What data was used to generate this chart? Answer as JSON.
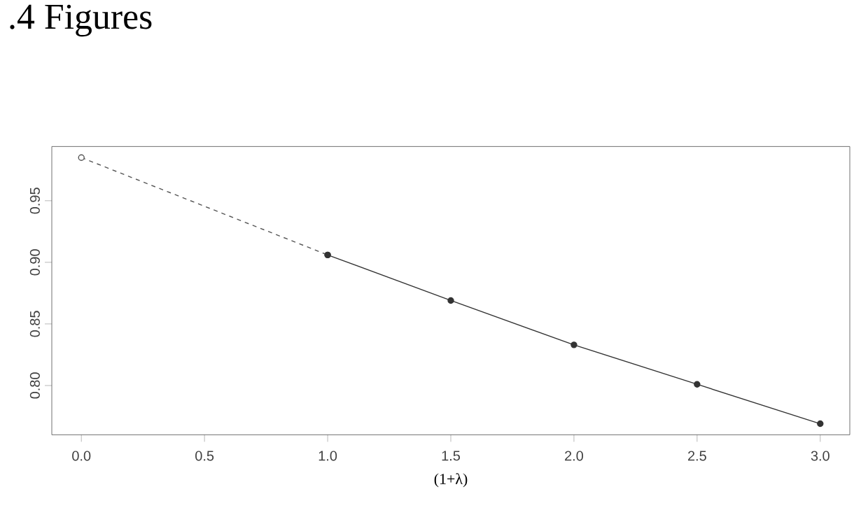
{
  "chart_data": {
    "type": "line",
    "title": ".4 Figures",
    "xlabel": "(1+λ)",
    "xlim": [
      -0.12,
      3.12
    ],
    "ylim": [
      0.76,
      0.994
    ],
    "xticks": [
      {
        "value": 0,
        "label": "0.0"
      },
      {
        "value": 0.5,
        "label": "0.5"
      },
      {
        "value": 1,
        "label": "1.0"
      },
      {
        "value": 1.5,
        "label": "1.5"
      },
      {
        "value": 2,
        "label": "2.0"
      },
      {
        "value": 2.5,
        "label": "2.5"
      },
      {
        "value": 3,
        "label": "3.0"
      }
    ],
    "yticks": [
      {
        "value": 0.8,
        "label": "0.80"
      },
      0.85,
      {
        "value": 0.9,
        "label": "0.90"
      },
      0.95
    ],
    "grid": false,
    "series": [
      {
        "color": "#555555",
        "line_style": "dashed",
        "marker": "circle",
        "x": [
          0,
          1
        ],
        "values": [
          0.985,
          0.906
        ]
      },
      {
        "color": "#333333",
        "line_style": "solid",
        "marker": "circle",
        "x": [
          1,
          1.5,
          2,
          2.5,
          3
        ],
        "values": [
          0.906,
          0.869,
          0.833,
          0.801,
          0.769
        ]
      }
    ]
  }
}
